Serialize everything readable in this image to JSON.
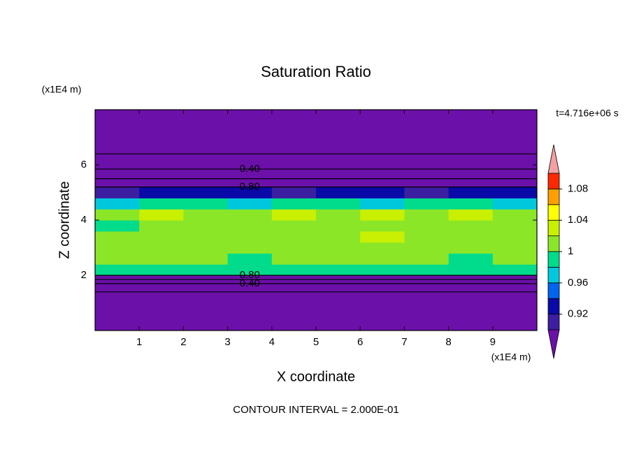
{
  "chart_data": {
    "type": "contour",
    "title": "Saturation Ratio",
    "x_label": "X coordinate",
    "y_label": "Z coordinate",
    "x_unit": "(x1E4 m)",
    "y_unit": "(x1E4 m)",
    "time_label": "t=4.716e+06 s",
    "footer": "CONTOUR INTERVAL = 2.000E-01",
    "xlim": [
      0,
      10
    ],
    "ylim": [
      0,
      8
    ],
    "xticks": [
      1,
      2,
      3,
      4,
      5,
      6,
      7,
      8,
      9
    ],
    "yticks": [
      2,
      4,
      6
    ],
    "background_color": "#6c10aa",
    "field_x": [
      0.5,
      1.5,
      2.5,
      3.5,
      4.5,
      5.5,
      6.5,
      7.5,
      8.5,
      9.5
    ],
    "field_z": [
      2.2,
      2.6,
      3.0,
      3.4,
      3.8,
      4.2,
      4.6,
      5.0
    ],
    "field_values": [
      [
        0.99,
        0.98,
        0.99,
        0.98,
        0.99,
        0.98,
        0.99,
        0.98,
        0.99,
        0.98
      ],
      [
        1.01,
        1.0,
        1.01,
        0.99,
        1.01,
        1.0,
        1.01,
        1.0,
        0.99,
        1.01
      ],
      [
        1.01,
        1.01,
        1.0,
        1.01,
        1.01,
        1.0,
        1.01,
        1.01,
        1.0,
        1.01
      ],
      [
        1.0,
        1.01,
        1.01,
        1.0,
        1.01,
        1.01,
        1.02,
        1.01,
        1.0,
        1.01
      ],
      [
        0.99,
        1.01,
        1.0,
        1.01,
        1.0,
        1.01,
        1.01,
        1.0,
        1.01,
        1.0
      ],
      [
        1.01,
        1.02,
        1.01,
        1.01,
        1.02,
        1.01,
        1.03,
        1.01,
        1.02,
        1.01
      ],
      [
        0.97,
        0.99,
        0.98,
        0.97,
        0.99,
        0.98,
        0.97,
        0.99,
        0.98,
        0.97
      ],
      [
        0.91,
        0.93,
        0.92,
        0.93,
        0.91,
        0.92,
        0.93,
        0.91,
        0.92,
        0.93
      ]
    ],
    "levels": [
      0.9,
      0.92,
      0.94,
      0.96,
      0.98,
      1.0,
      1.02,
      1.04,
      1.06,
      1.08,
      1.1
    ],
    "colors": [
      "#3c1ea0",
      "#0a0aa8",
      "#0064f0",
      "#00c8dc",
      "#00dc8c",
      "#8ce628",
      "#c8f000",
      "#ffff00",
      "#ffa000",
      "#ff2800"
    ],
    "under_color": "#6c10aa",
    "over_color": "#f4a0a0",
    "cbar_ticks": [
      0.92,
      0.96,
      1,
      1.04,
      1.08
    ],
    "contour_lines": [
      {
        "value": 0.2,
        "z": 6.4
      },
      {
        "value": 0.4,
        "label": "0.40",
        "z": 5.85
      },
      {
        "value": 0.6,
        "z": 5.5
      },
      {
        "value": 0.8,
        "label": "0.80",
        "z": 5.2
      },
      {
        "value": 0.8,
        "label": "0.80",
        "z": 2.0
      },
      {
        "value": 0.6,
        "z": 1.85
      },
      {
        "value": 0.4,
        "label": "0.40",
        "z": 1.7
      },
      {
        "value": 0.2,
        "z": 1.4
      }
    ]
  }
}
